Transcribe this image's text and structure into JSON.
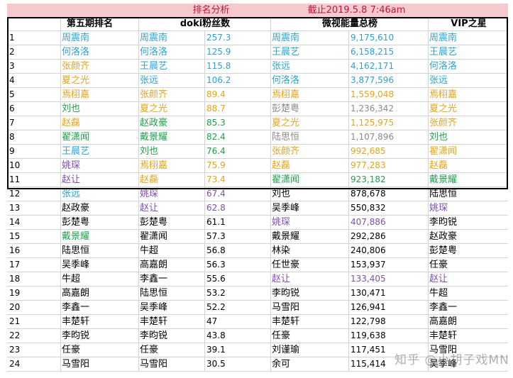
{
  "title": {
    "left": "排名分析",
    "right": "截止2019.5.8 7:46am"
  },
  "headers": {
    "rank": "第五期排名",
    "doki": "doki粉丝数",
    "weishi": "微视能量总榜",
    "vip": "VIP之星"
  },
  "colors": {
    "title_bg": "#f6c9cf",
    "title_text": "#c0143c",
    "blue": "#29a3d6",
    "orange": "#e8a317",
    "green": "#1f9e4a",
    "purple": "#7b4fb0",
    "gray": "#8c8c8c",
    "black": "#000000"
  },
  "rows": [
    {
      "n": "1",
      "r": "周震南",
      "rc": "blue",
      "d": "周震南",
      "dc": "blue",
      "dv": "257.3",
      "w": "周震南",
      "wc": "blue",
      "wv": "9,175,610",
      "v": "周震南",
      "vc": "blue"
    },
    {
      "n": "2",
      "r": "何洛洛",
      "rc": "blue",
      "d": "何洛洛",
      "dc": "blue",
      "dv": "125.9",
      "w": "王晨艺",
      "wc": "blue",
      "wv": "6,158,215",
      "v": "王晨艺",
      "vc": "blue"
    },
    {
      "n": "3",
      "r": "张颜齐",
      "rc": "orange",
      "d": "王晨艺",
      "dc": "blue",
      "dv": "115.8",
      "w": "张远",
      "wc": "blue",
      "wv": "4,162,171",
      "v": "何洛洛",
      "vc": "blue"
    },
    {
      "n": "4",
      "r": "夏之光",
      "rc": "orange",
      "d": "张远",
      "dc": "blue",
      "dv": "106.2",
      "w": "何洛洛",
      "wc": "blue",
      "wv": "3,877,596",
      "v": "张远",
      "vc": "blue"
    },
    {
      "n": "5",
      "r": "焉栩嘉",
      "rc": "orange",
      "d": "张颜齐",
      "dc": "orange",
      "dv": "89.4",
      "w": "焉栩嘉",
      "wc": "orange",
      "wv": "1,559,048",
      "v": "焉栩嘉",
      "vc": "orange"
    },
    {
      "n": "6",
      "r": "刘也",
      "rc": "green",
      "d": "夏之光",
      "dc": "orange",
      "dv": "88.7",
      "w": "彭楚粤",
      "wc": "gray",
      "wv": "1,236,342",
      "v": "夏之光",
      "vc": "orange"
    },
    {
      "n": "7",
      "r": "赵磊",
      "rc": "orange",
      "d": "赵政豪",
      "dc": "green",
      "dv": "85.3",
      "w": "夏之光",
      "wc": "orange",
      "wv": "1,125,975",
      "v": "张颜齐",
      "vc": "orange"
    },
    {
      "n": "8",
      "r": "翟潇闻",
      "rc": "green",
      "d": "戴景耀",
      "dc": "green",
      "dv": "82.4",
      "w": "陆思恒",
      "wc": "gray",
      "wv": "1,107,896",
      "v": "刘也",
      "vc": "green"
    },
    {
      "n": "9",
      "r": "王晨艺",
      "rc": "blue",
      "d": "刘也",
      "dc": "green",
      "dv": "76.4",
      "w": "张颜齐",
      "wc": "orange",
      "wv": "992,685",
      "v": "翟潇闻",
      "vc": "orange"
    },
    {
      "n": "10",
      "r": "姚琛",
      "rc": "purple",
      "d": "焉栩嘉",
      "dc": "orange",
      "dv": "75.9",
      "w": "赵磊",
      "wc": "orange",
      "wv": "977,283",
      "v": "赵磊",
      "vc": "orange"
    },
    {
      "n": "11",
      "r": "赵让",
      "rc": "purple",
      "d": "赵磊",
      "dc": "orange",
      "dv": "73.4",
      "w": "翟潇闻",
      "wc": "green",
      "wv": "923,182",
      "v": "戴景耀",
      "vc": "green"
    },
    {
      "n": "12",
      "r": "张远",
      "rc": "blue",
      "d": "姚琛",
      "dc": "purple",
      "dv": "67.4",
      "w": "刘也",
      "wc": "black",
      "wv": "878,678",
      "v": "陆思恒",
      "vc": "black"
    },
    {
      "n": "13",
      "r": "赵政豪",
      "rc": "black",
      "d": "赵让",
      "dc": "purple",
      "dv": "62.8",
      "w": "吴季峰",
      "wc": "black",
      "wv": "550,832",
      "v": "姚琛",
      "vc": "purple"
    },
    {
      "n": "14",
      "r": "彭楚粤",
      "rc": "black",
      "d": "彭楚粤",
      "dc": "black",
      "dv": "61.1",
      "w": "姚琛",
      "wc": "purple",
      "wv": "407,886",
      "v": "李昀锐",
      "vc": "black"
    },
    {
      "n": "15",
      "r": "戴景耀",
      "rc": "green",
      "d": "翟潇闻",
      "dc": "black",
      "dv": "57.3",
      "w": "戴景耀",
      "wc": "black",
      "wv": "292,286",
      "v": "赵政豪",
      "vc": "black"
    },
    {
      "n": "16",
      "r": "陆思恒",
      "rc": "black",
      "d": "牛超",
      "dc": "black",
      "dv": "56.8",
      "w": "林染",
      "wc": "black",
      "wv": "240,806",
      "v": "彭楚粤",
      "vc": "black"
    },
    {
      "n": "17",
      "r": "吴季峰",
      "rc": "black",
      "d": "高嘉朗",
      "dc": "black",
      "dv": "56.3",
      "w": "任世豪",
      "wc": "black",
      "wv": "153,937",
      "v": "任豪",
      "vc": "black"
    },
    {
      "n": "18",
      "r": "牛超",
      "rc": "black",
      "d": "李鑫一",
      "dc": "black",
      "dv": "55.6",
      "w": "赵让",
      "wc": "purple",
      "wv": "133,405",
      "v": "赵让",
      "vc": "purple"
    },
    {
      "n": "19",
      "r": "高嘉朗",
      "rc": "black",
      "d": "陆思恒",
      "dc": "black",
      "dv": "53.2",
      "w": "李昀锐",
      "wc": "black",
      "wv": "130,471",
      "v": "牛超",
      "vc": "black"
    },
    {
      "n": "20",
      "r": "李鑫一",
      "rc": "black",
      "d": "吴季峰",
      "dc": "black",
      "dv": "52.2",
      "w": "马雪阳",
      "wc": "black",
      "wv": "126,941",
      "v": "李鑫一",
      "vc": "black"
    },
    {
      "n": "21",
      "r": "丰楚轩",
      "rc": "black",
      "d": "丰楚轩",
      "dc": "black",
      "dv": "47",
      "w": "丰楚轩",
      "wc": "black",
      "wv": "122,798",
      "v": "高嘉朗",
      "vc": "black"
    },
    {
      "n": "22",
      "r": "李昀锐",
      "rc": "black",
      "d": "李昀锐",
      "dc": "black",
      "dv": "43.8",
      "w": "任豪",
      "wc": "black",
      "wv": "119,638",
      "v": "丰楚轩",
      "vc": "black"
    },
    {
      "n": "23",
      "r": "任豪",
      "rc": "black",
      "d": "任豪",
      "dc": "black",
      "dv": "39.1",
      "w": "刘谨瑜",
      "wc": "black",
      "wv": "117,451",
      "v": "马雪阳",
      "vc": "black"
    },
    {
      "n": "24",
      "r": "马雪阳",
      "rc": "black",
      "d": "马雪阳",
      "dc": "black",
      "dv": "30.5",
      "w": "余可",
      "wc": "black",
      "wv": "115,414",
      "v": "吴季峰",
      "vc": "black"
    }
  ],
  "watermark": "知乎 @小胡子戏MN"
}
